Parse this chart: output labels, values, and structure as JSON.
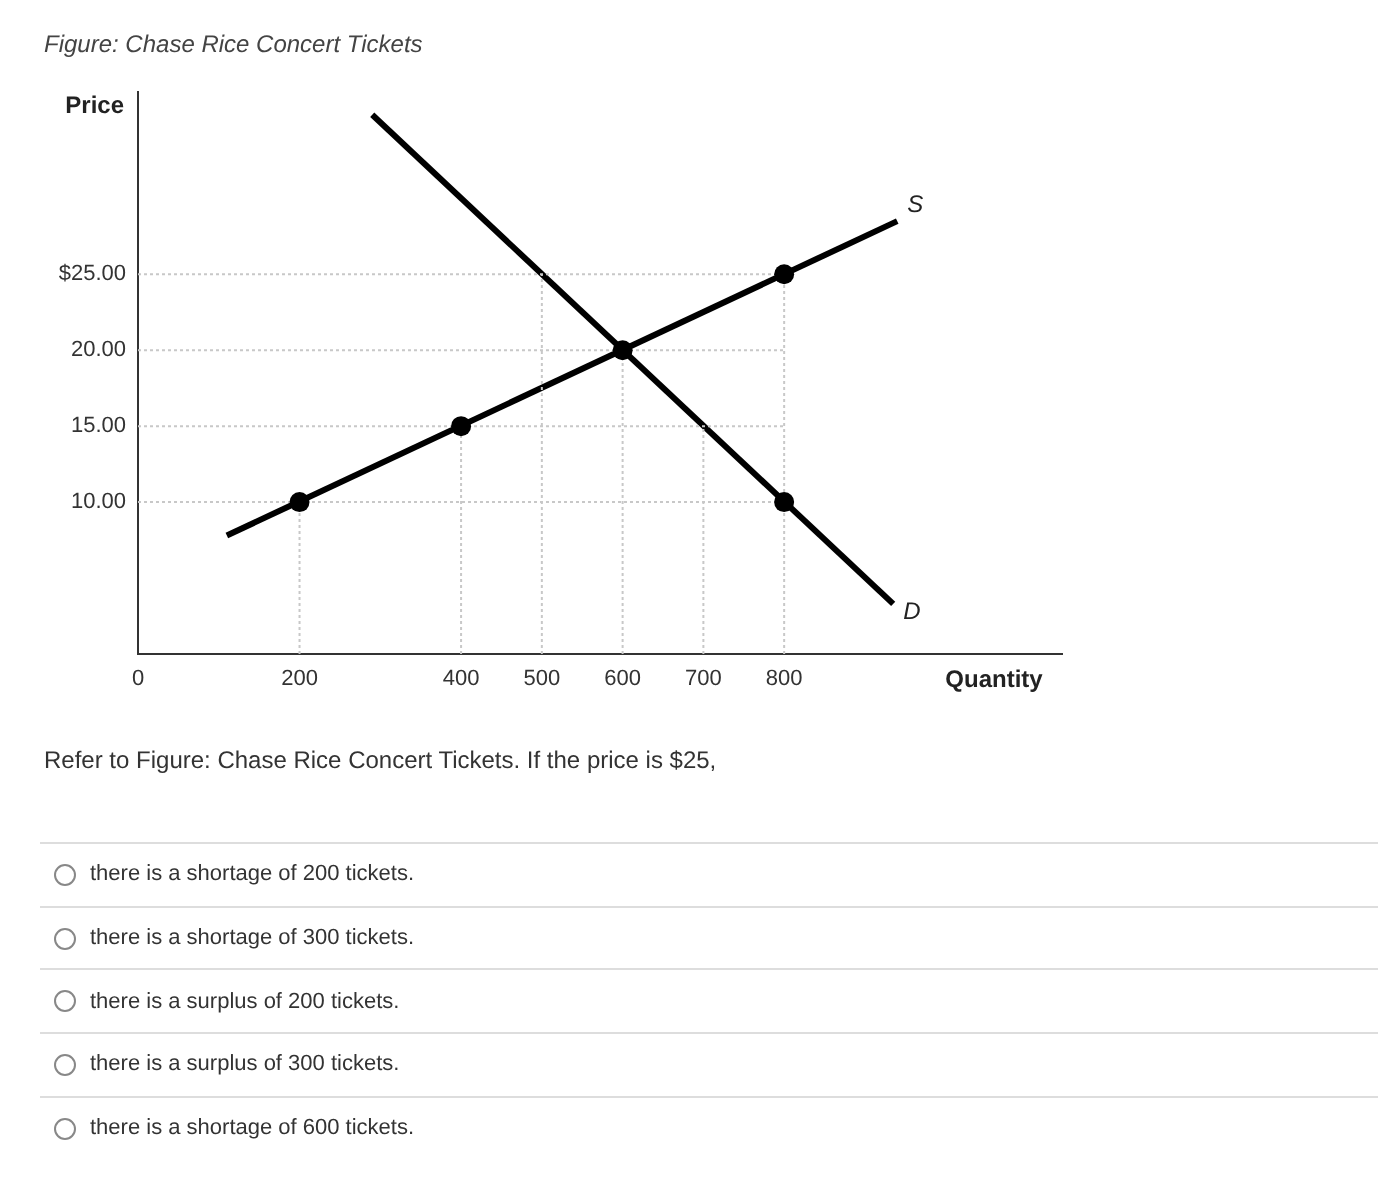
{
  "chart_data": {
    "type": "line",
    "title": "Figure: Chase Rice Concert Tickets",
    "xlabel": "Quantity",
    "ylabel": "Price",
    "xlim": [
      0,
      1144
    ],
    "ylim": [
      0,
      37
    ],
    "xticks": [
      0,
      200,
      400,
      500,
      600,
      700,
      800
    ],
    "yticks": [
      {
        "value": 10,
        "label": "10.00"
      },
      {
        "value": 15,
        "label": "15.00"
      },
      {
        "value": 20,
        "label": "20.00"
      },
      {
        "value": 25,
        "label": "$25.00"
      }
    ],
    "grid": false,
    "legend": false,
    "marker": "none",
    "line_style": "solid",
    "series": [
      {
        "color": "#c8c8c8",
        "line_style": "dotted",
        "x": [
          0,
          800
        ],
        "values": [
          25,
          25
        ]
      },
      {
        "color": "#c8c8c8",
        "line_style": "dotted",
        "x": [
          0,
          800
        ],
        "values": [
          20,
          20
        ]
      },
      {
        "color": "#c8c8c8",
        "line_style": "dotted",
        "x": [
          0,
          800
        ],
        "values": [
          15,
          15
        ]
      },
      {
        "color": "#c8c8c8",
        "line_style": "dotted",
        "x": [
          0,
          800
        ],
        "values": [
          10,
          10
        ]
      },
      {
        "color": "#c8c8c8",
        "line_style": "dotted",
        "x": [
          200,
          200
        ],
        "values": [
          0,
          10
        ]
      },
      {
        "color": "#c8c8c8",
        "line_style": "dotted",
        "x": [
          400,
          400
        ],
        "values": [
          0,
          15
        ]
      },
      {
        "color": "#c8c8c8",
        "line_style": "dotted",
        "x": [
          500,
          500
        ],
        "values": [
          0,
          25
        ]
      },
      {
        "color": "#c8c8c8",
        "line_style": "dotted",
        "x": [
          600,
          600
        ],
        "values": [
          0,
          20
        ]
      },
      {
        "color": "#c8c8c8",
        "line_style": "dotted",
        "x": [
          700,
          700
        ],
        "values": [
          0,
          15
        ]
      },
      {
        "color": "#c8c8c8",
        "line_style": "dotted",
        "x": [
          800,
          800
        ],
        "values": [
          0,
          25
        ]
      },
      {
        "name": "S",
        "color": "#000000",
        "x": [
          110,
          940
        ],
        "values": [
          7.8,
          28.5
        ]
      },
      {
        "name": "D",
        "color": "#000000",
        "x": [
          290,
          935
        ],
        "values": [
          35.5,
          3.3
        ]
      },
      {
        "type": "scatter",
        "color": "#000000",
        "marker": "circle",
        "x": [
          200,
          400,
          600,
          800,
          800
        ],
        "values": [
          10,
          15,
          20,
          25,
          10
        ]
      }
    ],
    "annotations": [
      "Refer to Figure: Chase Rice Concert Tickets. If the price is $25,",
      "there is a shortage of 200 tickets.",
      "there is a shortage of 300 tickets.",
      "there is a surplus of 200 tickets.",
      "there is a surplus of 300 tickets.",
      "there is a shortage of 600 tickets."
    ]
  }
}
